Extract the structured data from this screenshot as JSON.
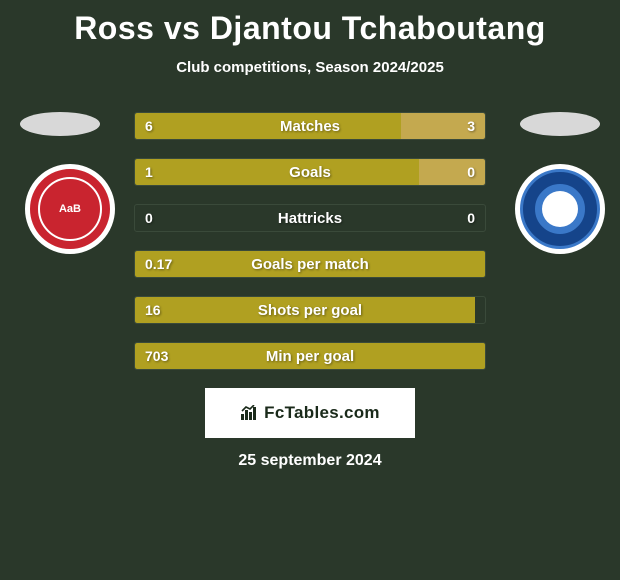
{
  "title": "Ross vs Djantou Tchaboutang",
  "subtitle": "Club competitions, Season 2024/2025",
  "colors": {
    "bar_left": "#b0a021",
    "bar_right": "#c4a94f",
    "bg": "#2a382a",
    "badge_left_bg": "#c9242f",
    "badge_right_bg": "#3a78c8",
    "badge_right_ring": "#15448a"
  },
  "badge_left_text": "AaB",
  "stats": [
    {
      "label": "Matches",
      "left_val": "6",
      "right_val": "3",
      "left_pct": 76,
      "right_pct": 24
    },
    {
      "label": "Goals",
      "left_val": "1",
      "right_val": "0",
      "left_pct": 81,
      "right_pct": 19
    },
    {
      "label": "Hattricks",
      "left_val": "0",
      "right_val": "0",
      "left_pct": 0,
      "right_pct": 0
    },
    {
      "label": "Goals per match",
      "left_val": "0.17",
      "right_val": "",
      "left_pct": 100,
      "right_pct": 0
    },
    {
      "label": "Shots per goal",
      "left_val": "16",
      "right_val": "",
      "left_pct": 97,
      "right_pct": 0
    },
    {
      "label": "Min per goal",
      "left_val": "703",
      "right_val": "",
      "left_pct": 100,
      "right_pct": 0
    }
  ],
  "footer_brand": "FcTables.com",
  "date": "25 september 2024"
}
